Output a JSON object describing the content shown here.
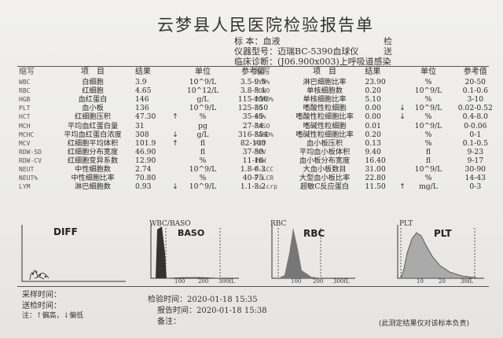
{
  "report": {
    "title": "云梦县人民医院检验报告单",
    "specimen_label": "标 本：",
    "specimen": "血液",
    "instrument_label": "仪器型号：",
    "instrument": "迈瑞BC-5390血球仪",
    "diagnosis_label": "临床诊断：",
    "diagnosis": "(J06.900x003)上呼吸道感染",
    "right_label_1": "检",
    "right_label_2": "送"
  },
  "columns": {
    "code": "缩写",
    "name": "项　目",
    "value": "结果",
    "unit": "单位",
    "ref": "参考值"
  },
  "left_rows": [
    {
      "code": "WBC",
      "name": "白细胞",
      "value": "3.9",
      "flag": "",
      "unit": "10^9/L",
      "ref": "3.5-9.5"
    },
    {
      "code": "RBC",
      "name": "红细胞",
      "value": "4.65",
      "flag": "",
      "unit": "10^12/L",
      "ref": "3.8-5.1"
    },
    {
      "code": "HGB",
      "name": "血红蛋白",
      "value": "146",
      "flag": "",
      "unit": "g/L",
      "ref": "115-150"
    },
    {
      "code": "PLT",
      "name": "血小板",
      "value": "136",
      "flag": "",
      "unit": "10^9/L",
      "ref": "125-350"
    },
    {
      "code": "HCT",
      "name": "红细胞压积",
      "value": "47.30",
      "flag": "↑",
      "unit": "%",
      "ref": "35-45"
    },
    {
      "code": "MCH",
      "name": "平均血红蛋白量",
      "value": "31",
      "flag": "",
      "unit": "pg",
      "ref": "27-34"
    },
    {
      "code": "MCHC",
      "name": "平均血红蛋白浓度",
      "value": "308",
      "flag": "↓",
      "unit": "g/L",
      "ref": "316-354"
    },
    {
      "code": "MCV",
      "name": "红细胞平均体积",
      "value": "101.9",
      "flag": "↑",
      "unit": "fl",
      "ref": "82-100"
    },
    {
      "code": "RDW-SD",
      "name": "红细胞分布宽度",
      "value": "46.90",
      "flag": "",
      "unit": "fl",
      "ref": "37-50"
    },
    {
      "code": "RDW-CV",
      "name": "红细胞变异系数",
      "value": "12.90",
      "flag": "",
      "unit": "%",
      "ref": "11-16"
    },
    {
      "code": "NEUT",
      "name": "中性细胞数",
      "value": "2.74",
      "flag": "",
      "unit": "10^9/L",
      "ref": "1.8-6.3"
    },
    {
      "code": "NEUT%",
      "name": "中性细胞比率",
      "value": "70.80",
      "flag": "",
      "unit": "%",
      "ref": "40-75"
    },
    {
      "code": "LYM",
      "name": "淋巴细胞数",
      "value": "0.93",
      "flag": "↓",
      "unit": "10^9/L",
      "ref": "1.1-3.2"
    }
  ],
  "right_rows": [
    {
      "code": "LYM%",
      "name": "淋巴细胞比率",
      "value": "23.90",
      "flag": "",
      "unit": "%",
      "ref": "20-50"
    },
    {
      "code": "MONO",
      "name": "单核细胞数",
      "value": "0.20",
      "flag": "",
      "unit": "10^9/L",
      "ref": "0.1-0.6"
    },
    {
      "code": "MONO%",
      "name": "单核细胞比率",
      "value": "5.10",
      "flag": "",
      "unit": "%",
      "ref": "3-10"
    },
    {
      "code": "EO",
      "name": "嗜酸性粒细胞",
      "value": "0.00",
      "flag": "↓",
      "unit": "10^9/L",
      "ref": "0.02-0.52"
    },
    {
      "code": "EO%",
      "name": "嗜酸性粒细胞比率",
      "value": "0.00",
      "flag": "↓",
      "unit": "%",
      "ref": "0.4-8.0"
    },
    {
      "code": "BASO",
      "name": "嗜碱性粒细胞",
      "value": "0.01",
      "flag": "",
      "unit": "10^9/L",
      "ref": "0-0.06"
    },
    {
      "code": "BASO%",
      "name": "嗜碱性粒细胞比率",
      "value": "0.20",
      "flag": "",
      "unit": "%",
      "ref": "0-1"
    },
    {
      "code": "PCT",
      "name": "血小板压积",
      "value": "0.13",
      "flag": "",
      "unit": "%",
      "ref": "0.1-0.5"
    },
    {
      "code": "MPV",
      "name": "平均血小板体积",
      "value": "9.40",
      "flag": "",
      "unit": "fl",
      "ref": "9-23"
    },
    {
      "code": "PDW",
      "name": "血小板分布宽度",
      "value": "16.40",
      "flag": "",
      "unit": "fl",
      "ref": "9-17"
    },
    {
      "code": "P-LCC",
      "name": "大血小板数目",
      "value": "31.00",
      "flag": "",
      "unit": "10^9/L",
      "ref": "30-90"
    },
    {
      "code": "P-LCR",
      "name": "大型血小板比率",
      "value": "22.80",
      "flag": "",
      "unit": "%",
      "ref": "14-43"
    },
    {
      "code": "hs-crp",
      "name": "超敏C反应蛋白",
      "value": "11.50",
      "flag": "↑",
      "unit": "mg/L",
      "ref": "0-3"
    }
  ],
  "histograms": {
    "diff": "DIFF",
    "wbc": "WBC/BASO",
    "baso": "BASO",
    "rbc_small": "RBC",
    "rbc": "RBC",
    "plt_small": "PLT",
    "plt": "PLT",
    "wbc_ticks": [
      "100",
      "200",
      "300fL"
    ],
    "rbc_ticks": [
      "100",
      "200",
      "300fL"
    ],
    "plt_ticks": [
      "10",
      "20",
      "30fL"
    ]
  },
  "footer": {
    "collect_label": "采样时间：",
    "send_label": "送检时间：",
    "legend": "注：↑偏高，↓偏低",
    "check_label": "检验时间：",
    "check_time": "2020-01-18 15:35",
    "report_label": "报告时间：",
    "report_time": "2020-01-18 15:38",
    "remark_label": "备注：",
    "disclaimer": "(此测定结果仅对该标本负责)"
  }
}
